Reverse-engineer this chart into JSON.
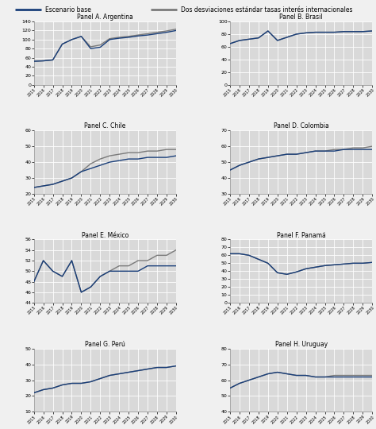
{
  "years": [
    2015,
    2016,
    2017,
    2018,
    2019,
    2020,
    2021,
    2022,
    2023,
    2024,
    2025,
    2026,
    2027,
    2028,
    2029,
    2030
  ],
  "panels": [
    {
      "title": "Panel A. Argentina",
      "ylim": [
        0,
        140
      ],
      "yticks": [
        0,
        20,
        40,
        60,
        80,
        100,
        120,
        140
      ],
      "blue": [
        52,
        53,
        55,
        90,
        100,
        107,
        80,
        83,
        100,
        103,
        105,
        108,
        110,
        113,
        116,
        120
      ],
      "gray": [
        52,
        53,
        55,
        90,
        100,
        107,
        84,
        88,
        102,
        105,
        107,
        110,
        113,
        116,
        119,
        123
      ]
    },
    {
      "title": "Panel B. Brasil",
      "ylim": [
        0,
        100
      ],
      "yticks": [
        0,
        20,
        40,
        60,
        80,
        100
      ],
      "blue": [
        65,
        70,
        72,
        74,
        85,
        70,
        75,
        80,
        82,
        83,
        83,
        83,
        84,
        84,
        84,
        85
      ],
      "gray": [
        65,
        70,
        72,
        74,
        85,
        70,
        75,
        80,
        82,
        83,
        83,
        83,
        84,
        84,
        84,
        85
      ]
    },
    {
      "title": "Panel C. Chile",
      "ylim": [
        20,
        60
      ],
      "yticks": [
        20,
        30,
        40,
        50,
        60
      ],
      "blue": [
        24,
        25,
        26,
        28,
        30,
        34,
        36,
        38,
        40,
        41,
        42,
        42,
        43,
        43,
        43,
        44
      ],
      "gray": [
        24,
        25,
        26,
        28,
        30,
        34,
        39,
        42,
        44,
        45,
        46,
        46,
        47,
        47,
        48,
        48
      ]
    },
    {
      "title": "Panel D. Colombia",
      "ylim": [
        30,
        70
      ],
      "yticks": [
        30,
        40,
        50,
        60,
        70
      ],
      "blue": [
        45,
        48,
        50,
        52,
        53,
        54,
        55,
        55,
        56,
        57,
        57,
        57,
        58,
        58,
        58,
        58
      ],
      "gray": [
        45,
        48,
        50,
        52,
        53,
        54,
        55,
        55,
        56,
        57,
        57,
        58,
        58,
        59,
        59,
        60
      ]
    },
    {
      "title": "Panel E. México",
      "ylim": [
        44,
        56
      ],
      "yticks": [
        44,
        46,
        48,
        50,
        52,
        54,
        56
      ],
      "blue": [
        48,
        52,
        50,
        49,
        52,
        46,
        47,
        49,
        50,
        50,
        50,
        50,
        51,
        51,
        51,
        51
      ],
      "gray": [
        48,
        52,
        50,
        49,
        52,
        46,
        47,
        49,
        50,
        51,
        51,
        52,
        52,
        53,
        53,
        54
      ]
    },
    {
      "title": "Panel F. Panamá",
      "ylim": [
        0,
        80
      ],
      "yticks": [
        0,
        10,
        20,
        30,
        40,
        50,
        60,
        70,
        80
      ],
      "blue": [
        62,
        62,
        60,
        55,
        50,
        38,
        36,
        39,
        43,
        45,
        47,
        48,
        49,
        50,
        50,
        51
      ],
      "gray": [
        62,
        62,
        60,
        55,
        50,
        38,
        36,
        39,
        43,
        45,
        47,
        48,
        49,
        50,
        50,
        51
      ]
    },
    {
      "title": "Panel G. Perú",
      "ylim": [
        10,
        50
      ],
      "yticks": [
        10,
        20,
        30,
        40,
        50
      ],
      "blue": [
        22,
        24,
        25,
        27,
        28,
        28,
        29,
        31,
        33,
        34,
        35,
        36,
        37,
        38,
        38,
        39
      ],
      "gray": [
        22,
        24,
        25,
        27,
        28,
        28,
        29,
        31,
        33,
        34,
        35,
        36,
        37,
        38,
        38,
        39
      ]
    },
    {
      "title": "Panel H. Uruguay",
      "ylim": [
        40,
        80
      ],
      "yticks": [
        40,
        50,
        60,
        70,
        80
      ],
      "blue": [
        55,
        58,
        60,
        62,
        64,
        65,
        64,
        63,
        63,
        62,
        62,
        62,
        62,
        62,
        62,
        62
      ],
      "gray": [
        55,
        58,
        60,
        62,
        64,
        65,
        64,
        63,
        63,
        62,
        62,
        63,
        63,
        63,
        63,
        63
      ]
    }
  ],
  "legend_blue": "Escenario base",
  "legend_gray": "Dos desviaciones estándar tasas interés internacionales",
  "blue_color": "#1a3f7a",
  "gray_color": "#7a7a7a",
  "bg_color": "#d9d9d9",
  "legend_bg": "#d0d0d0",
  "fig_bg": "#f0f0f0",
  "xtick_labels": [
    "2015",
    "2016",
    "2017",
    "2018",
    "2019",
    "2020",
    "2021",
    "2022",
    "2023",
    "2024",
    "2025",
    "2026",
    "2027",
    "2028",
    "2029",
    "2030"
  ]
}
